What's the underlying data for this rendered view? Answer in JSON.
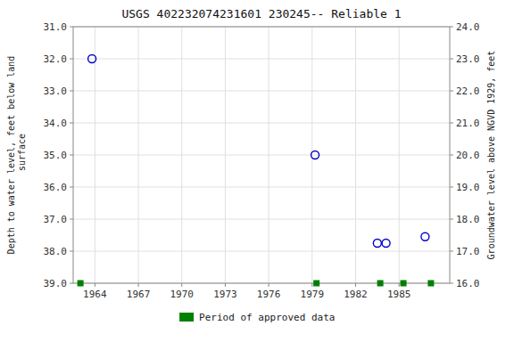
{
  "chart_data": {
    "type": "scatter",
    "title": "USGS 402232074231601 230245-- Reliable 1",
    "ylabel": "Depth to water level, feet below land\n surface",
    "y2label": "Groundwater level above NGVD 1929, feet",
    "xlim": [
      1962.5,
      1988.5
    ],
    "xticks": [
      1964,
      1967,
      1970,
      1973,
      1976,
      1979,
      1982,
      1985
    ],
    "ylim": [
      39.0,
      31.0
    ],
    "yticks": [
      {
        "value": 31.0,
        "label": "31.0"
      },
      {
        "value": 32.0,
        "label": "32.0"
      },
      {
        "value": 33.0,
        "label": "33.0"
      },
      {
        "value": 34.0,
        "label": "34.0"
      },
      {
        "value": 35.0,
        "label": "35.0"
      },
      {
        "value": 36.0,
        "label": "36.0"
      },
      {
        "value": 37.0,
        "label": "37.0"
      },
      {
        "value": 38.0,
        "label": "38.0"
      },
      {
        "value": 39.0,
        "label": "39.0"
      }
    ],
    "y2lim": [
      16.0,
      24.0
    ],
    "y2ticks": [
      {
        "value": 16.0,
        "label": "16.0"
      },
      {
        "value": 17.0,
        "label": "17.0"
      },
      {
        "value": 18.0,
        "label": "18.0"
      },
      {
        "value": 19.0,
        "label": "19.0"
      },
      {
        "value": 20.0,
        "label": "20.0"
      },
      {
        "value": 21.0,
        "label": "21.0"
      },
      {
        "value": 22.0,
        "label": "22.0"
      },
      {
        "value": 23.0,
        "label": "23.0"
      },
      {
        "value": 24.0,
        "label": "24.0"
      }
    ],
    "grid": true,
    "legend": "bottom",
    "series": [
      {
        "color": "#0000cc",
        "marker": "circle",
        "x": [
          1963.8,
          1979.2,
          1983.5,
          1984.1,
          1986.8
        ],
        "values": [
          32.0,
          35.0,
          37.75,
          37.75,
          37.55
        ]
      },
      {
        "name": "Period of approved data",
        "color": "#008000",
        "marker": "square",
        "x": [
          1963.0,
          1979.3,
          1983.7,
          1985.3,
          1987.2
        ],
        "values": [
          39.0,
          39.0,
          39.0,
          39.0,
          39.0
        ]
      }
    ]
  }
}
